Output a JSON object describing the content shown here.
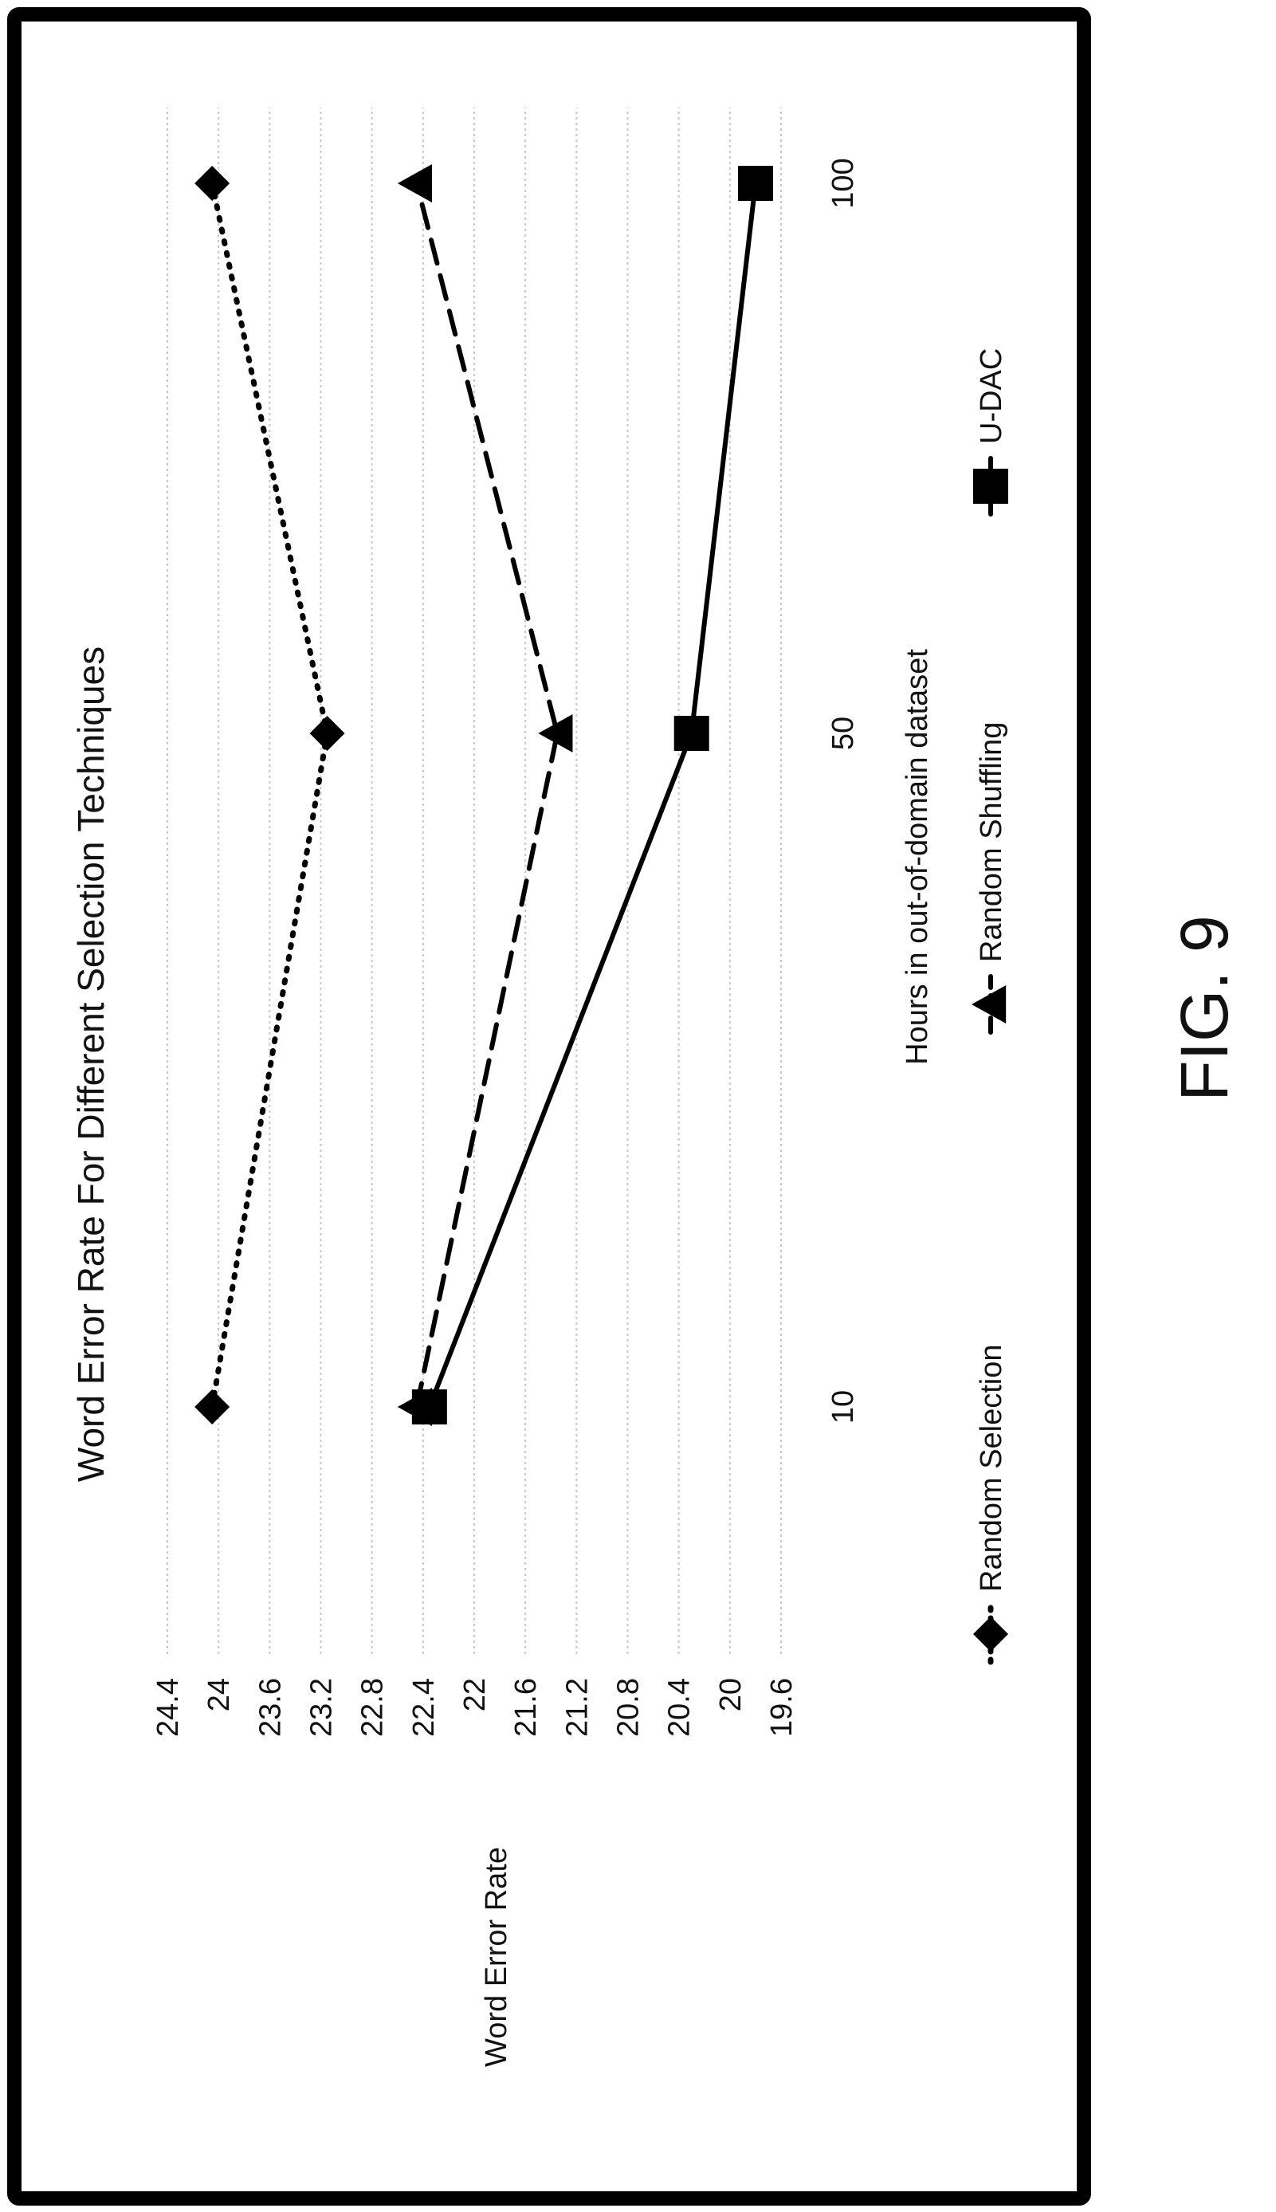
{
  "figure": {
    "caption": "FIG. 9"
  },
  "chart_data": {
    "type": "line",
    "title": "Word Error Rate For Different Selection Techniques",
    "xlabel": "Hours in out-of-domain dataset",
    "ylabel": "Word Error Rate",
    "x_scale": "categorical",
    "categories": [
      "10",
      "50",
      "100"
    ],
    "y_ticks": [
      "24.4",
      "24",
      "23.6",
      "23.2",
      "22.8",
      "22.4",
      "22",
      "21.6",
      "21.2",
      "20.8",
      "20.4",
      "20",
      "19.6"
    ],
    "ylim": [
      19.6,
      24.4
    ],
    "grid": true,
    "legend_position": "bottom",
    "series": [
      {
        "name": "Random Selection",
        "values": [
          24.05,
          23.15,
          24.05
        ],
        "marker": "diamond",
        "line": "dotted",
        "color": "#000000"
      },
      {
        "name": "Random Shuffling",
        "values": [
          22.45,
          21.35,
          22.45
        ],
        "marker": "triangle",
        "line": "dashed",
        "color": "#000000"
      },
      {
        "name": "U-DAC",
        "values": [
          22.35,
          20.3,
          19.8
        ],
        "marker": "square",
        "line": "solid",
        "color": "#000000"
      }
    ]
  }
}
